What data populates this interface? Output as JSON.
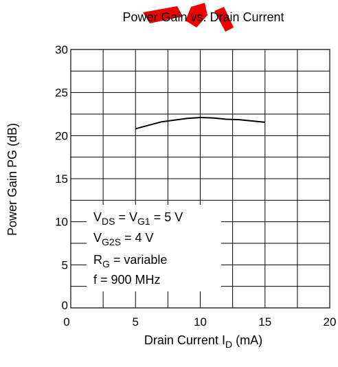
{
  "chart_data": {
    "type": "line",
    "title": "Power Gain vs. Drain  Current",
    "xlabel": {
      "main": "Drain  Current  I",
      "sub": "D",
      "unit": " (mA)"
    },
    "ylabel": "Power Gain  PG  (dB)",
    "xlim": [
      0,
      20
    ],
    "ylim": [
      0,
      30
    ],
    "x_ticks": [
      0,
      5,
      10,
      15,
      20
    ],
    "y_ticks": [
      0,
      5,
      10,
      15,
      20,
      25,
      30
    ],
    "grid": true,
    "series": [
      {
        "x": [
          5,
          6,
          7,
          8,
          9,
          10,
          11,
          12,
          13,
          14,
          15
        ],
        "y": [
          20.8,
          21.2,
          21.6,
          21.8,
          22.0,
          22.1,
          22.05,
          21.9,
          21.85,
          21.7,
          21.55
        ]
      }
    ],
    "annotation_lines": [
      {
        "main": "V",
        "sub1": "DS",
        "mid": "  = V",
        "sub2": "G1",
        "tail": " = 5 V"
      },
      {
        "main": "V",
        "sub1": "G2S",
        "tail": " = 4 V"
      },
      {
        "main": "R",
        "sub1": "G",
        "tail": " = variable"
      },
      {
        "main": "f = 900 MHz"
      }
    ]
  },
  "colors": {
    "watermark": "#ee0000"
  }
}
